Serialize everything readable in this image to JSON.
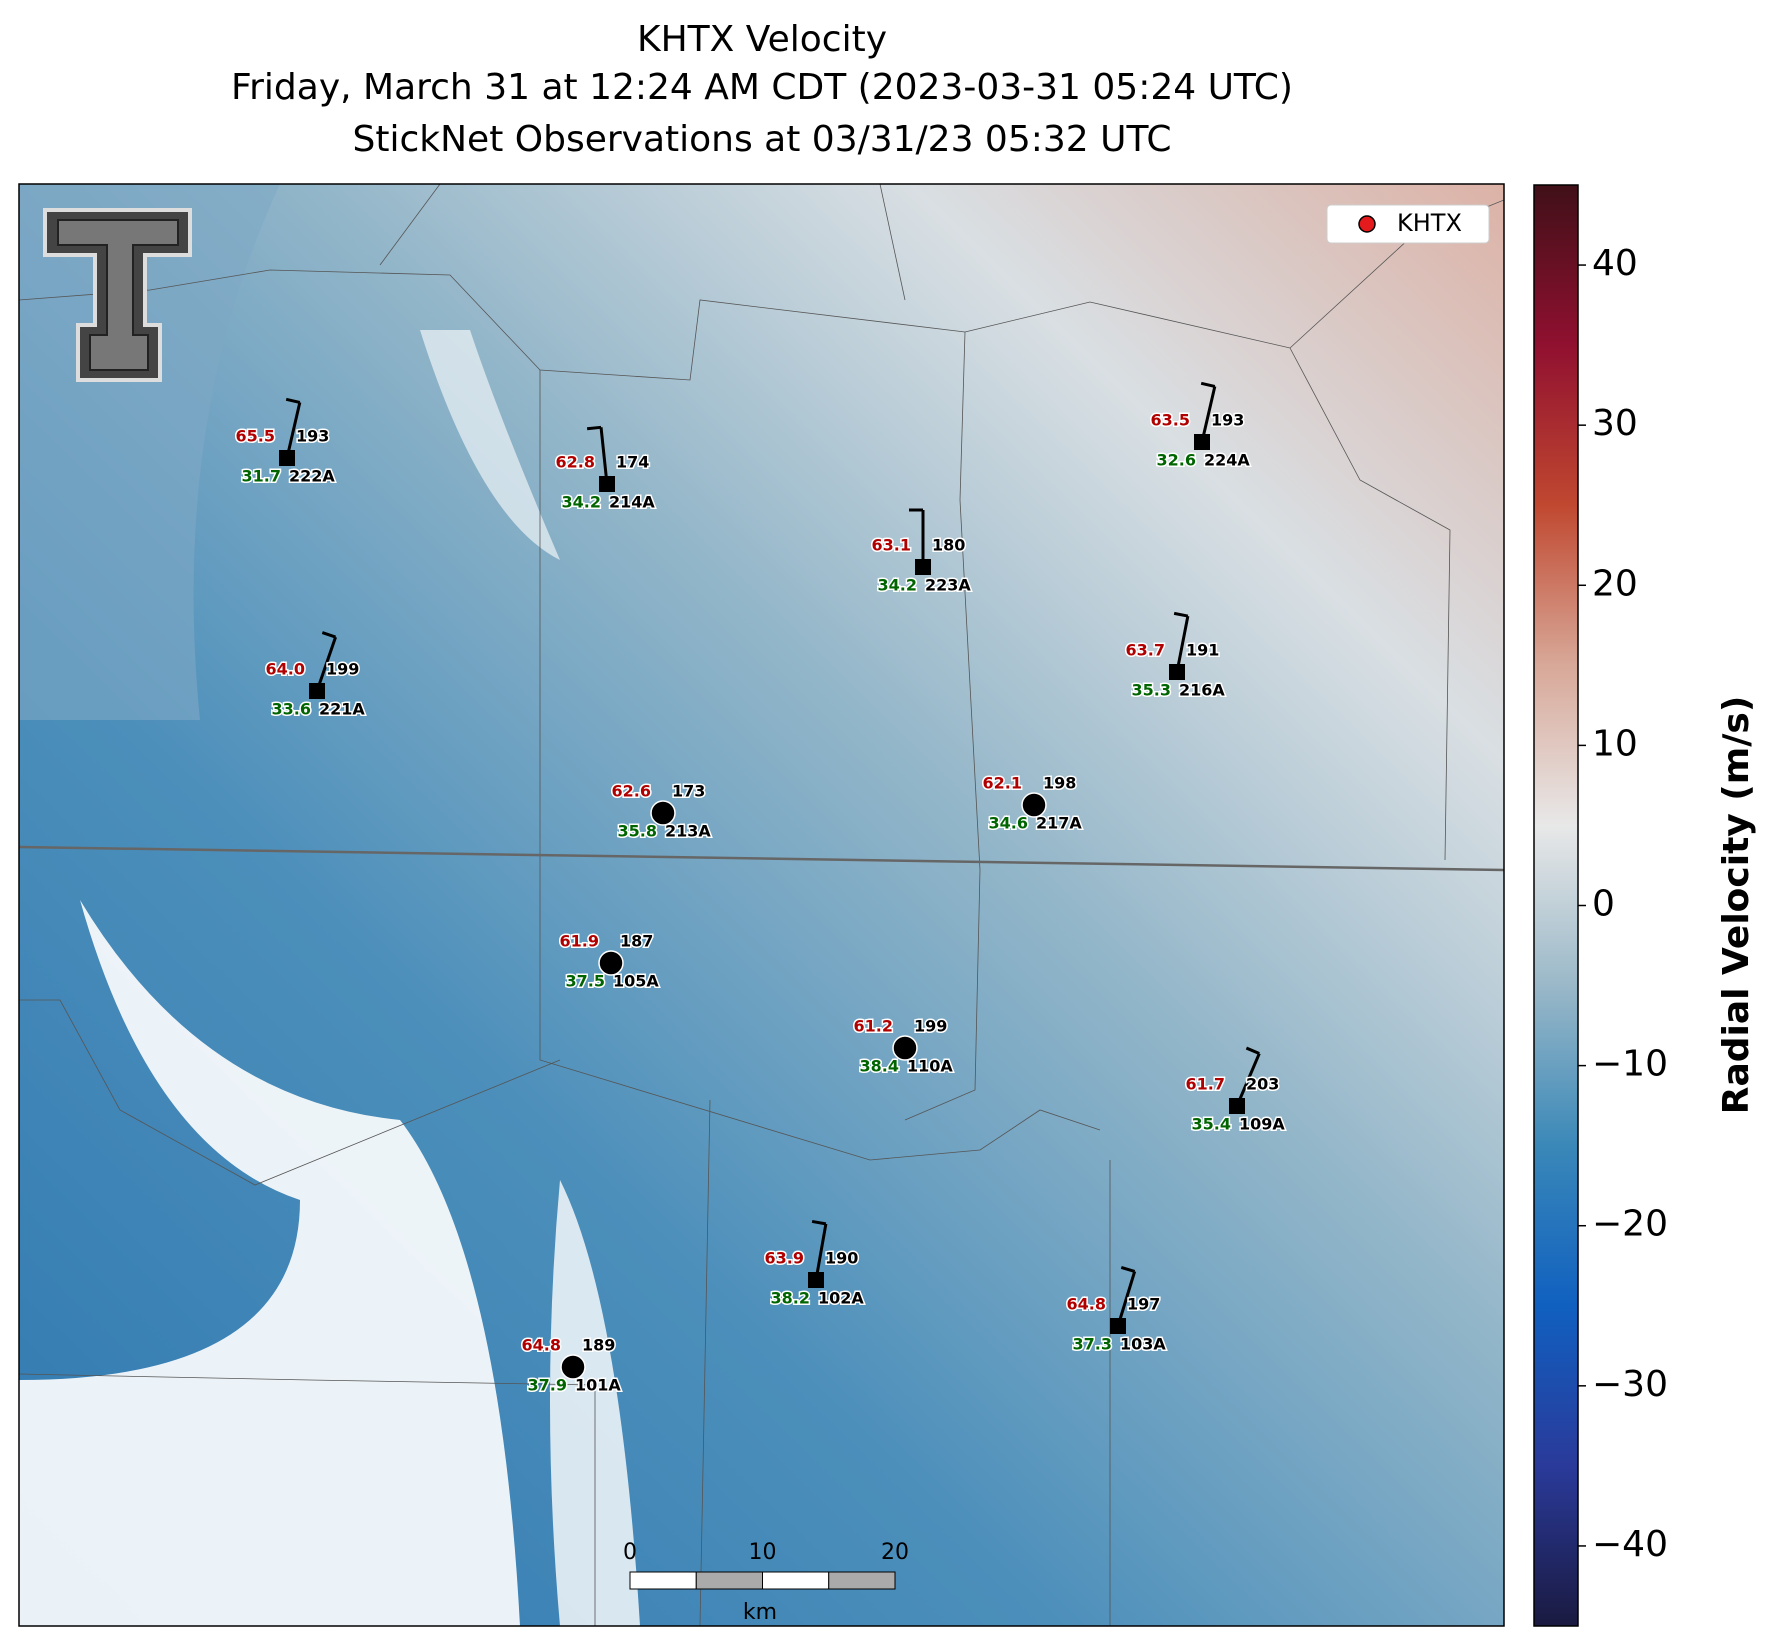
{
  "title": [
    "KHTX Velocity",
    "Friday, March 31 at 12:24 AM CDT (2023-03-31 05:24 UTC)",
    "StickNet Observations at 03/31/23 05:32 UTC"
  ],
  "legend": {
    "label": "KHTX",
    "color": "#e41a1c"
  },
  "stations": [
    {
      "id": "222A",
      "temp": "65.5",
      "dir": 193,
      "dew": "31.7",
      "marker": "square"
    },
    {
      "id": "214A",
      "temp": "62.8",
      "dir": 174,
      "dew": "34.2",
      "marker": "square"
    },
    {
      "id": "223A",
      "temp": "63.1",
      "dir": 180,
      "dew": "34.2",
      "marker": "square"
    },
    {
      "id": "224A",
      "temp": "63.5",
      "dir": 193,
      "dew": "32.6",
      "marker": "square"
    },
    {
      "id": "221A",
      "temp": "64.0",
      "dir": 199,
      "dew": "33.6",
      "marker": "square"
    },
    {
      "id": "216A",
      "temp": "63.7",
      "dir": 191,
      "dew": "35.3",
      "marker": "square"
    },
    {
      "id": "213A",
      "temp": "62.6",
      "dir": 173,
      "dew": "35.8",
      "marker": "circle"
    },
    {
      "id": "217A",
      "temp": "62.1",
      "dir": 198,
      "dew": "34.6",
      "marker": "circle"
    },
    {
      "id": "105A",
      "temp": "61.9",
      "dir": 187,
      "dew": "37.5",
      "marker": "circle"
    },
    {
      "id": "110A",
      "temp": "61.2",
      "dir": 199,
      "dew": "38.4",
      "marker": "circle"
    },
    {
      "id": "109A",
      "temp": "61.7",
      "dir": 203,
      "dew": "35.4",
      "marker": "square"
    },
    {
      "id": "102A",
      "temp": "63.9",
      "dir": 190,
      "dew": "38.2",
      "marker": "square"
    },
    {
      "id": "103A",
      "temp": "64.8",
      "dir": 197,
      "dew": "37.3",
      "marker": "square"
    },
    {
      "id": "101A",
      "temp": "64.8",
      "dir": 189,
      "dew": "37.9",
      "marker": "circle"
    }
  ],
  "colorbar": {
    "label": "Radial Velocity (m/s)",
    "lim": [
      -45,
      45
    ],
    "ticks": [
      {
        "value": -40,
        "label": "−40"
      },
      {
        "value": -30,
        "label": "−30"
      },
      {
        "value": -20,
        "label": "−20"
      },
      {
        "value": -10,
        "label": "−10"
      },
      0,
      10,
      20,
      30,
      40
    ],
    "colors": [
      "#1a1a40",
      "#2a3a9a",
      "#1060c0",
      "#3a88b8",
      "#9ab8c8",
      "#e8e8e8",
      "#d8a898",
      "#c04830",
      "#901030",
      "#401018"
    ]
  },
  "scalebar": {
    "ticks": [
      0,
      10,
      20
    ],
    "unit": "km"
  }
}
